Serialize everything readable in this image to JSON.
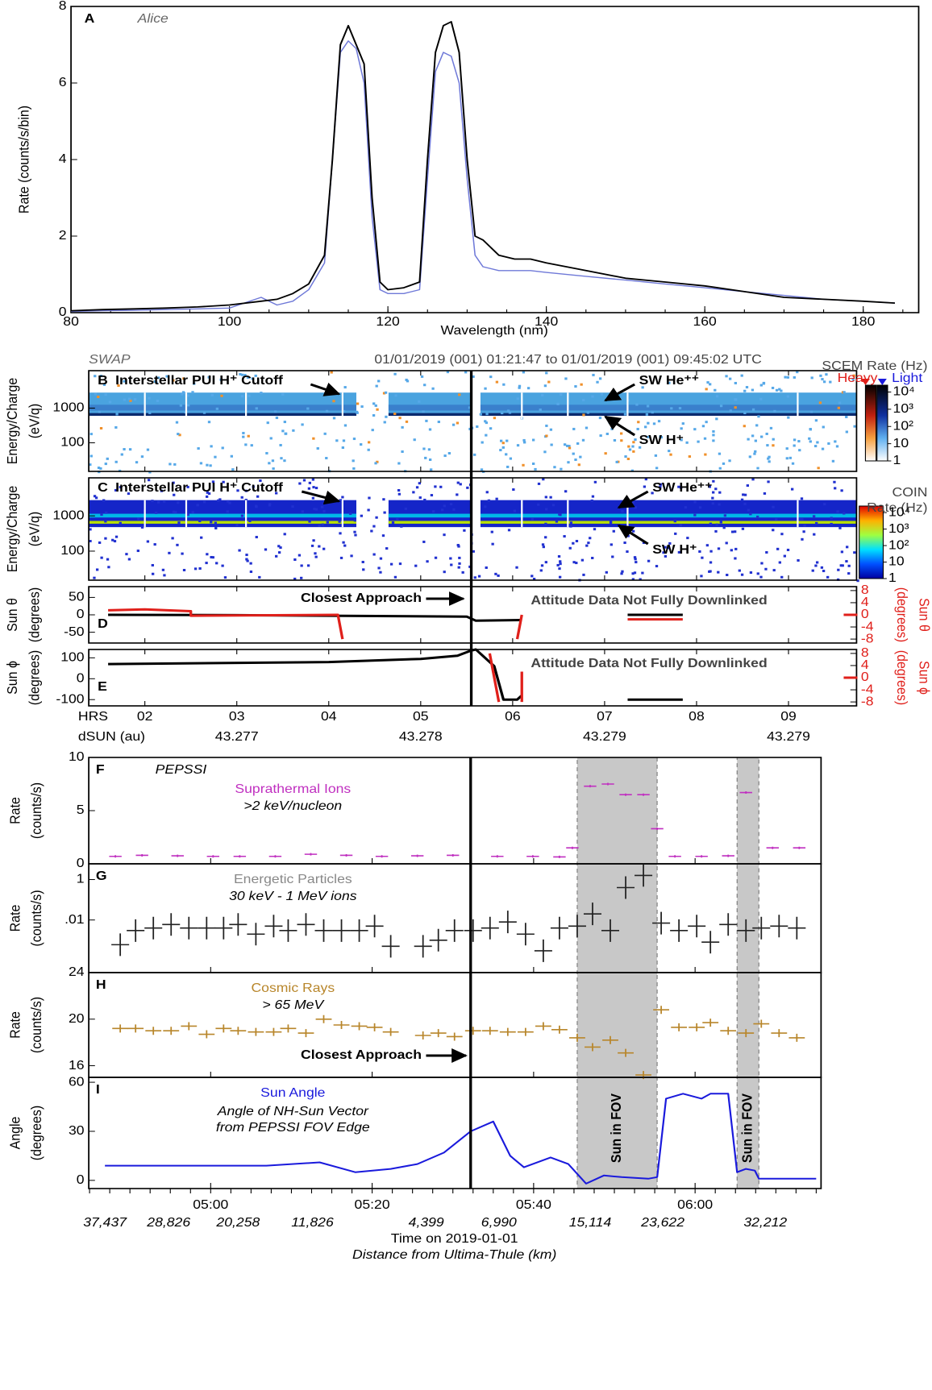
{
  "chart_data": [
    {
      "type": "line",
      "label": "A",
      "subtitle": "Alice",
      "x_label": "Wavelength (nm)",
      "y_label": "Rate (counts/s/bin)",
      "xlim": [
        80,
        187
      ],
      "ylim": [
        0,
        8
      ],
      "xticks": [
        80,
        100,
        120,
        140,
        160,
        180
      ],
      "yticks": [
        0,
        2,
        4,
        6,
        8
      ],
      "x": [
        80,
        84,
        88,
        92,
        96,
        100,
        104,
        106,
        108,
        110,
        112,
        113,
        114,
        115,
        116,
        117,
        118,
        119,
        120,
        122,
        124,
        125,
        126,
        127,
        128,
        129,
        130,
        131,
        132,
        134,
        136,
        138,
        140,
        145,
        150,
        155,
        160,
        165,
        170,
        175,
        180,
        184
      ],
      "series": [
        {
          "color": "#000000",
          "values": [
            0.05,
            0.08,
            0.1,
            0.12,
            0.15,
            0.2,
            0.3,
            0.35,
            0.5,
            0.75,
            1.5,
            4,
            7,
            7.5,
            7,
            6.5,
            3,
            0.8,
            0.6,
            0.65,
            0.8,
            4,
            6.8,
            7.5,
            7.6,
            6.8,
            4,
            2,
            1.9,
            1.5,
            1.4,
            1.4,
            1.3,
            1.1,
            0.9,
            0.8,
            0.7,
            0.55,
            0.4,
            0.35,
            0.3,
            0.25
          ]
        },
        {
          "color": "#6f79d8",
          "values": [
            0.03,
            0.05,
            0.06,
            0.08,
            0.1,
            0.12,
            0.4,
            0.2,
            0.3,
            0.6,
            1.3,
            4,
            6.8,
            7.1,
            6.9,
            6,
            2.5,
            0.6,
            0.5,
            0.5,
            0.6,
            3.5,
            6.3,
            6.8,
            6.7,
            6,
            3.5,
            1.5,
            1.2,
            1.1,
            1.1,
            1.1,
            1.05,
            0.95,
            0.85,
            0.75,
            0.65,
            0.55,
            0.45,
            0.35,
            0.3,
            0.25
          ]
        }
      ]
    },
    {
      "type": "spectrogram",
      "label": "B",
      "y_label": [
        "Energy/Charge",
        "(eV/q)"
      ],
      "log_y": true,
      "ylim": [
        15,
        12000
      ],
      "yticks": [
        100,
        1000
      ],
      "annotations": [
        "Interstellar PUI H⁺ Cutoff",
        "SW He⁺⁺",
        "SW H⁺"
      ],
      "colorbar": {
        "title": "SCEM Rate (Hz)",
        "labels": [
          "Heavy",
          "Light"
        ],
        "lim": [
          1,
          25000
        ],
        "ticks": [
          1,
          10,
          {
            "value": 100,
            "label": "10²"
          },
          {
            "value": 1000,
            "label": "10³"
          },
          {
            "value": 10000,
            "label": "10⁴"
          }
        ]
      }
    },
    {
      "type": "spectrogram",
      "label": "C",
      "y_label": [
        "Energy/Charge",
        "(eV/q)"
      ],
      "log_y": true,
      "ylim": [
        15,
        12000
      ],
      "yticks": [
        100,
        1000
      ],
      "annotations": [
        "Interstellar PUI H⁺ Cutoff",
        "SW He⁺⁺",
        "SW H⁺"
      ],
      "colorbar": {
        "title": "COIN",
        "subtitle": "Rate (Hz)",
        "lim": [
          1,
          25000
        ],
        "ticks": [
          1,
          10,
          {
            "value": 100,
            "label": "10²"
          },
          {
            "value": 1000,
            "label": "10³"
          },
          {
            "value": 10000,
            "label": "10⁴"
          }
        ]
      }
    },
    {
      "type": "line",
      "label": "D",
      "y_label": [
        "Sun θ",
        "(degrees)"
      ],
      "y2_label": [
        "Sun θ",
        "(degrees)"
      ],
      "ylim": [
        -81,
        81
      ],
      "yticks": [
        50,
        0,
        -50
      ],
      "y2lim": [
        -9.3,
        9.3
      ],
      "y2ticks": [
        8,
        4,
        0,
        -4,
        -8
      ],
      "annotations": [
        "Closest Approach",
        "Attitude Data Not Fully Downlinked"
      ],
      "series": [
        {
          "color": "#000000",
          "x": [
            1.6,
            3,
            4.15,
            5.5,
            5.6,
            6.1,
            6.11,
            7.25,
            7.85
          ],
          "values": [
            0,
            -1,
            -3,
            -5,
            -17,
            -15,
            null,
            0,
            0
          ]
        },
        {
          "color": "#e0201b",
          "axis": "y2",
          "x": [
            1.6,
            2.0,
            2.5,
            2.5,
            4.1,
            4.15,
            4.16,
            6.05,
            6.1,
            6.11,
            7.25,
            7.85,
            7.86,
            9.6,
            9.75
          ],
          "values": [
            1.5,
            1.8,
            1.2,
            -0.3,
            0,
            -8,
            null,
            -8,
            0,
            null,
            -1.5,
            -1.5,
            null,
            0,
            0
          ]
        }
      ]
    },
    {
      "type": "line",
      "label": "E",
      "y_label": [
        "Sun ϕ",
        "(degrees)"
      ],
      "y2_label": [
        "Sun ϕ",
        "(degrees)"
      ],
      "ylim": [
        -130,
        140
      ],
      "yticks": [
        100,
        0,
        -100
      ],
      "y2lim": [
        -9.3,
        9.3
      ],
      "y2ticks": [
        8,
        4,
        0,
        -4,
        -8
      ],
      "annotations": [
        "Attitude Data Not Fully Downlinked"
      ],
      "series": [
        {
          "color": "#000000",
          "x": [
            1.6,
            4,
            5,
            5.4,
            5.55,
            5.6,
            5.8,
            5.9,
            6.05,
            6.1,
            6.11,
            7.25,
            7.85
          ],
          "values": [
            70,
            80,
            95,
            110,
            135,
            140,
            60,
            -100,
            -100,
            -80,
            null,
            -100,
            -100
          ]
        },
        {
          "color": "#e0201b",
          "axis": "y2",
          "x": [
            5.75,
            5.85,
            5.86,
            6.1,
            6.1,
            6.11,
            9.6,
            9.75
          ],
          "values": [
            8,
            -8,
            null,
            2,
            -8,
            null,
            0,
            0
          ]
        }
      ]
    },
    {
      "type": "scatter",
      "label": "F",
      "title": "Suprathermal Ions",
      "subtitle": ">2 keV/nucleon",
      "y_label": [
        "Rate",
        "(counts/s)"
      ],
      "color": "#c030c0",
      "ylim": [
        0,
        10
      ],
      "yticks": [
        0,
        5,
        10
      ],
      "x": [
        48.2,
        51.5,
        55.9,
        60.3,
        63.6,
        68.0,
        72.4,
        76.8,
        81.2,
        85.6,
        90.0,
        95.5,
        99.9,
        103.2,
        104.8,
        107.0,
        109.2,
        111.4,
        113.6,
        115.3,
        117.5,
        120.8,
        124.1,
        126.3,
        129.6,
        132.9
      ],
      "values": [
        0.7,
        0.8,
        0.75,
        0.7,
        0.7,
        0.7,
        0.9,
        0.8,
        0.7,
        0.75,
        0.8,
        0.7,
        0.7,
        0.65,
        1.5,
        7.3,
        7.5,
        6.5,
        6.5,
        3.3,
        0.7,
        0.7,
        0.75,
        6.7,
        1.5,
        1.5
      ]
    },
    {
      "type": "scatter",
      "label": "G",
      "title": "Energetic Particles",
      "subtitle": "30 keV - 1 MeV ions",
      "y_label": [
        "Rate",
        "(counts/s)"
      ],
      "color": "#222222",
      "log_y": true,
      "ylim": [
        2.5e-05,
        6
      ],
      "yticks": [
        {
          "value": 0.01,
          "label": ".01"
        },
        1
      ],
      "x": [
        48.8,
        50.7,
        52.9,
        55.1,
        57.3,
        59.5,
        61.6,
        63.4,
        65.6,
        67.8,
        69.6,
        71.8,
        74.0,
        76.2,
        78.4,
        80.3,
        82.3,
        86.3,
        88.2,
        90.2,
        92.5,
        94.6,
        96.8,
        99.0,
        101.2,
        103.2,
        105.4,
        107.3,
        109.5,
        111.4,
        113.6,
        115.8,
        118.0,
        120.2,
        121.9,
        124.1,
        126.3,
        128.2,
        130.4,
        132.6
      ],
      "values": [
        0.0006,
        0.003,
        0.004,
        0.006,
        0.004,
        0.004,
        0.004,
        0.006,
        0.002,
        0.005,
        0.003,
        0.006,
        0.003,
        0.003,
        0.003,
        0.005,
        0.0005,
        0.0005,
        0.001,
        0.003,
        0.003,
        0.004,
        0.008,
        0.002,
        0.0003,
        0.004,
        0.005,
        0.02,
        0.003,
        0.4,
        1.6,
        0.007,
        0.003,
        0.005,
        0.0008,
        0.006,
        0.003,
        0.004,
        0.005,
        0.004
      ]
    },
    {
      "type": "scatter",
      "label": "H",
      "title": "Cosmic Rays",
      "subtitle": "> 65 MeV",
      "y_label": [
        "Rate",
        "(counts/s)"
      ],
      "color": "#b8862b",
      "ylim": [
        15,
        24
      ],
      "yticks": [
        16,
        20,
        24
      ],
      "annotations": [
        "Closest Approach"
      ],
      "x": [
        48.8,
        50.7,
        52.9,
        55.1,
        57.3,
        59.5,
        61.6,
        63.4,
        65.6,
        67.8,
        69.6,
        71.8,
        74.0,
        76.2,
        78.4,
        80.3,
        82.3,
        86.3,
        88.2,
        90.2,
        92.5,
        94.6,
        96.8,
        99.0,
        101.2,
        103.2,
        105.4,
        107.3,
        109.5,
        111.4,
        113.6,
        115.8,
        118.0,
        120.2,
        121.9,
        124.1,
        126.3,
        128.2,
        130.4,
        132.6
      ],
      "values": [
        19.2,
        19.2,
        19.0,
        19.0,
        19.4,
        18.7,
        19.2,
        19.0,
        18.9,
        18.9,
        19.2,
        18.8,
        20.0,
        19.5,
        19.4,
        19.3,
        18.9,
        18.6,
        18.8,
        18.5,
        19.0,
        19.0,
        18.9,
        18.9,
        19.4,
        19.1,
        18.4,
        17.6,
        18.2,
        17.1,
        15.2,
        20.8,
        19.3,
        19.3,
        19.7,
        19.0,
        18.8,
        19.6,
        18.8,
        18.4
      ]
    },
    {
      "type": "line",
      "label": "I",
      "title": "Sun Angle",
      "subtitle": [
        "Angle of NH-Sun Vector",
        "from PEPSSI FOV Edge"
      ],
      "y_label": [
        "Angle",
        "(degrees)"
      ],
      "ylim": [
        -5,
        63
      ],
      "yticks": [
        0,
        30,
        60
      ],
      "series": [
        {
          "color": "#1a1adc",
          "x": [
            46.9,
            66.9,
            73.5,
            77.9,
            82.3,
            85.6,
            88.9,
            92.2,
            95.0,
            97.1,
            98.8,
            102.1,
            104.3,
            106.5,
            108.7,
            110.9,
            114.2,
            115.3,
            116.4,
            118.5,
            120.8,
            121.9,
            124.1,
            125.2,
            126.3,
            127.4,
            127.9,
            130.7,
            135.0
          ],
          "values": [
            9,
            9,
            11,
            5,
            7,
            10,
            17,
            30,
            36,
            15,
            8,
            14,
            10,
            -2,
            3,
            2,
            1,
            2,
            50,
            53,
            50,
            53,
            53,
            5,
            7,
            6,
            1,
            1,
            1
          ]
        }
      ]
    }
  ],
  "swap_axis": {
    "instrument": "SWAP",
    "time_range": "01/01/2019 (001) 01:21:47 to 01/01/2019 (001) 09:45:02 UTC",
    "xlim": [
      1.39,
      9.74
    ],
    "closest_approach_x": 5.55,
    "x_label": "HRS",
    "distance_label": "dSUN (au)",
    "xticks": [
      {
        "value": 2,
        "label": "02"
      },
      {
        "value": 3,
        "label": "03"
      },
      {
        "value": 4,
        "label": "04"
      },
      {
        "value": 5,
        "label": "05"
      },
      {
        "value": 6,
        "label": "06"
      },
      {
        "value": 7,
        "label": "07"
      },
      {
        "value": 8,
        "label": "08"
      },
      {
        "value": 9,
        "label": "09"
      }
    ],
    "distance_ticks": [
      {
        "value": 3,
        "label": "43.277"
      },
      {
        "value": 5,
        "label": "43.278"
      },
      {
        "value": 7,
        "label": "43.279"
      },
      {
        "value": 9,
        "label": "43.279"
      }
    ]
  },
  "pepssi_axis": {
    "instrument": "PEPSSI",
    "xlim": [
      44.9,
      135.6
    ],
    "closest_approach_x": 92.2,
    "x_label": "Time on 2019-01-01",
    "x_sublabel": "Distance from Ultima-Thule (km)",
    "fov_label": "Sun in FOV",
    "fov_spans": [
      [
        105.4,
        115.3
      ],
      [
        125.2,
        127.9
      ]
    ],
    "xticks": [
      {
        "value": 60,
        "label": "05:00"
      },
      {
        "value": 80,
        "label": "05:20"
      },
      {
        "value": 100,
        "label": "05:40"
      },
      {
        "value": 120,
        "label": "06:00"
      }
    ],
    "distance_ticks": [
      {
        "value": 46.9,
        "label": "37,437"
      },
      {
        "value": 54.8,
        "label": "28,826"
      },
      {
        "value": 63.4,
        "label": "20,258"
      },
      {
        "value": 72.6,
        "label": "11,826"
      },
      {
        "value": 86.7,
        "label": "4,399"
      },
      {
        "value": 95.7,
        "label": "6,990"
      },
      {
        "value": 107,
        "label": "15,114"
      },
      {
        "value": 116,
        "label": "23,622"
      },
      {
        "value": 128.7,
        "label": "32,212"
      }
    ]
  }
}
